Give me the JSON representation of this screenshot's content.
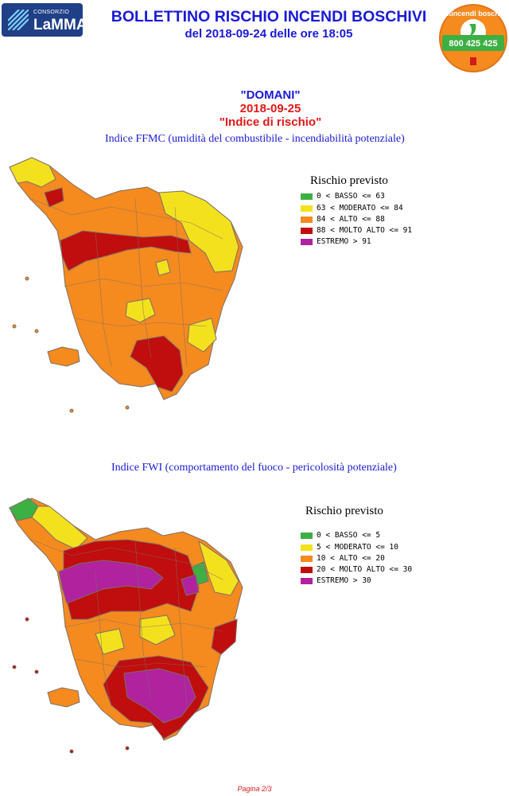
{
  "header": {
    "logo_small": "CONSORZIO",
    "logo_big": "LaMMA",
    "title": "BOLLETTINO RISCHIO INCENDI BOSCHIVI",
    "subtitle": "del 2018-09-24 delle ore 18:05"
  },
  "badge": {
    "ring_text": "Antincendi boschivi",
    "phone": "800 425 425"
  },
  "forecast": {
    "day_label": "\"DOMANI\"",
    "date": "2018-09-25",
    "index_label": "\"Indice di rischio\""
  },
  "ffmc": {
    "description": "Indice FFMC (umidità del combustibile - incendiabilità potenziale)",
    "legend_title": "Rischio previsto",
    "legend": [
      {
        "label": "0 < BASSO <= 63",
        "color": "#3cb043"
      },
      {
        "label": "63 < MODERATO <= 84",
        "color": "#f4e11e"
      },
      {
        "label": "84 < ALTO <= 88",
        "color": "#f58a1f"
      },
      {
        "label": "88 < MOLTO ALTO <= 91",
        "color": "#c00d0d"
      },
      {
        "label": "ESTREMO > 91",
        "color": "#b0229e"
      }
    ]
  },
  "fwi": {
    "description": "Indice FWI (comportamento del fuoco - pericolosità potenziale)",
    "legend_title": "Rischio previsto",
    "legend": [
      {
        "label": "0 < BASSO <= 5",
        "color": "#3cb043"
      },
      {
        "label": "5 < MODERATO <= 10",
        "color": "#f4e11e"
      },
      {
        "label": "10 < ALTO <= 20",
        "color": "#f58a1f"
      },
      {
        "label": "20 < MOLTO ALTO <= 30",
        "color": "#c00d0d"
      },
      {
        "label": "ESTREMO > 30",
        "color": "#b0229e"
      }
    ]
  },
  "footer": "Pagina 2/3"
}
